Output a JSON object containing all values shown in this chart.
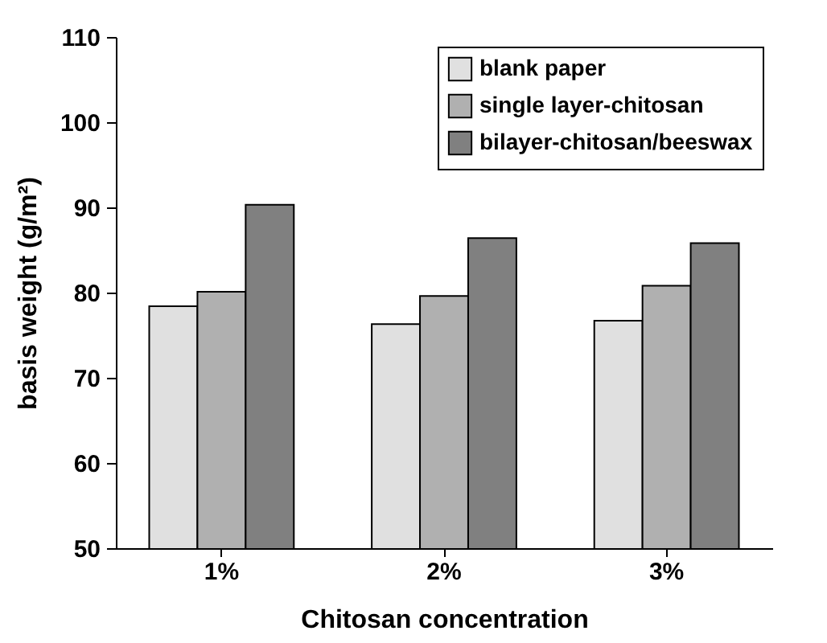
{
  "chart_data": {
    "type": "bar",
    "xlabel": "Chitosan concentration",
    "ylabel": "basis weight (g/m²)",
    "categories": [
      "1%",
      "2%",
      "3%"
    ],
    "series": [
      {
        "name": "blank paper",
        "color": "#e0e0e0",
        "values": [
          78.4,
          76.3,
          76.7
        ]
      },
      {
        "name": "single layer-chitosan",
        "color": "#b0b0b0",
        "values": [
          80.1,
          79.6,
          80.8
        ]
      },
      {
        "name": "bilayer-chitosan/beeswax",
        "color": "#808080",
        "values": [
          90.3,
          86.4,
          85.8
        ]
      }
    ],
    "ylim": [
      50,
      110
    ],
    "yticks": [
      50,
      60,
      70,
      80,
      90,
      100,
      110
    ],
    "grid": false,
    "legend": "top right"
  }
}
